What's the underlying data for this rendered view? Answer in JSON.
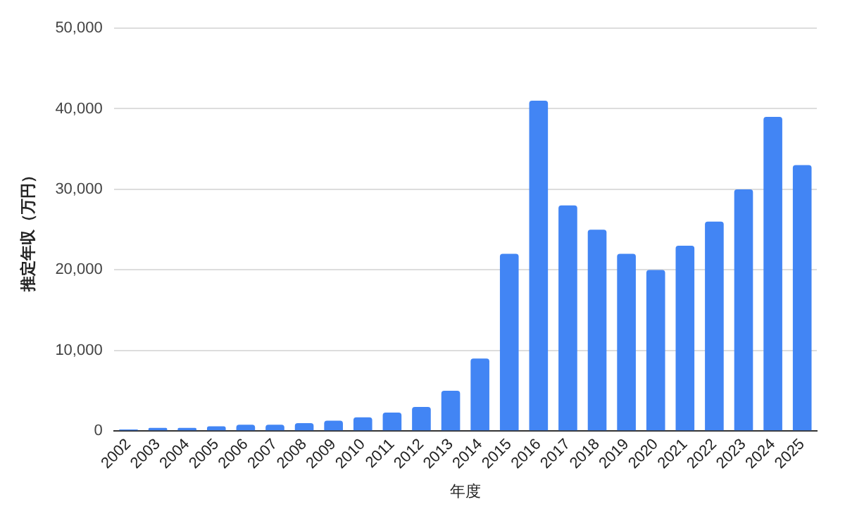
{
  "chart_data": {
    "type": "bar",
    "xlabel": "年度",
    "ylabel": "推定年収（万円）",
    "categories": [
      "2002",
      "2003",
      "2004",
      "2005",
      "2006",
      "2007",
      "2008",
      "2009",
      "2010",
      "2011",
      "2012",
      "2013",
      "2014",
      "2015",
      "2016",
      "2017",
      "2018",
      "2019",
      "2020",
      "2021",
      "2022",
      "2023",
      "2024",
      "2025"
    ],
    "values": [
      200,
      400,
      400,
      600,
      800,
      800,
      1000,
      1300,
      1700,
      2300,
      3000,
      5000,
      9000,
      22000,
      41000,
      28000,
      25000,
      22000,
      20000,
      23000,
      26000,
      30000,
      39000,
      33000
    ],
    "color": "#4285f4",
    "ylim": [
      0,
      50000
    ],
    "yticks": [
      0,
      {
        "value": 10000,
        "label": "10,000"
      },
      {
        "value": 20000,
        "label": "20,000"
      },
      {
        "value": 30000,
        "label": "30,000"
      },
      {
        "value": 40000,
        "label": "40,000"
      },
      {
        "value": 50000,
        "label": "50,000"
      }
    ],
    "grid": "y",
    "legend": false
  }
}
